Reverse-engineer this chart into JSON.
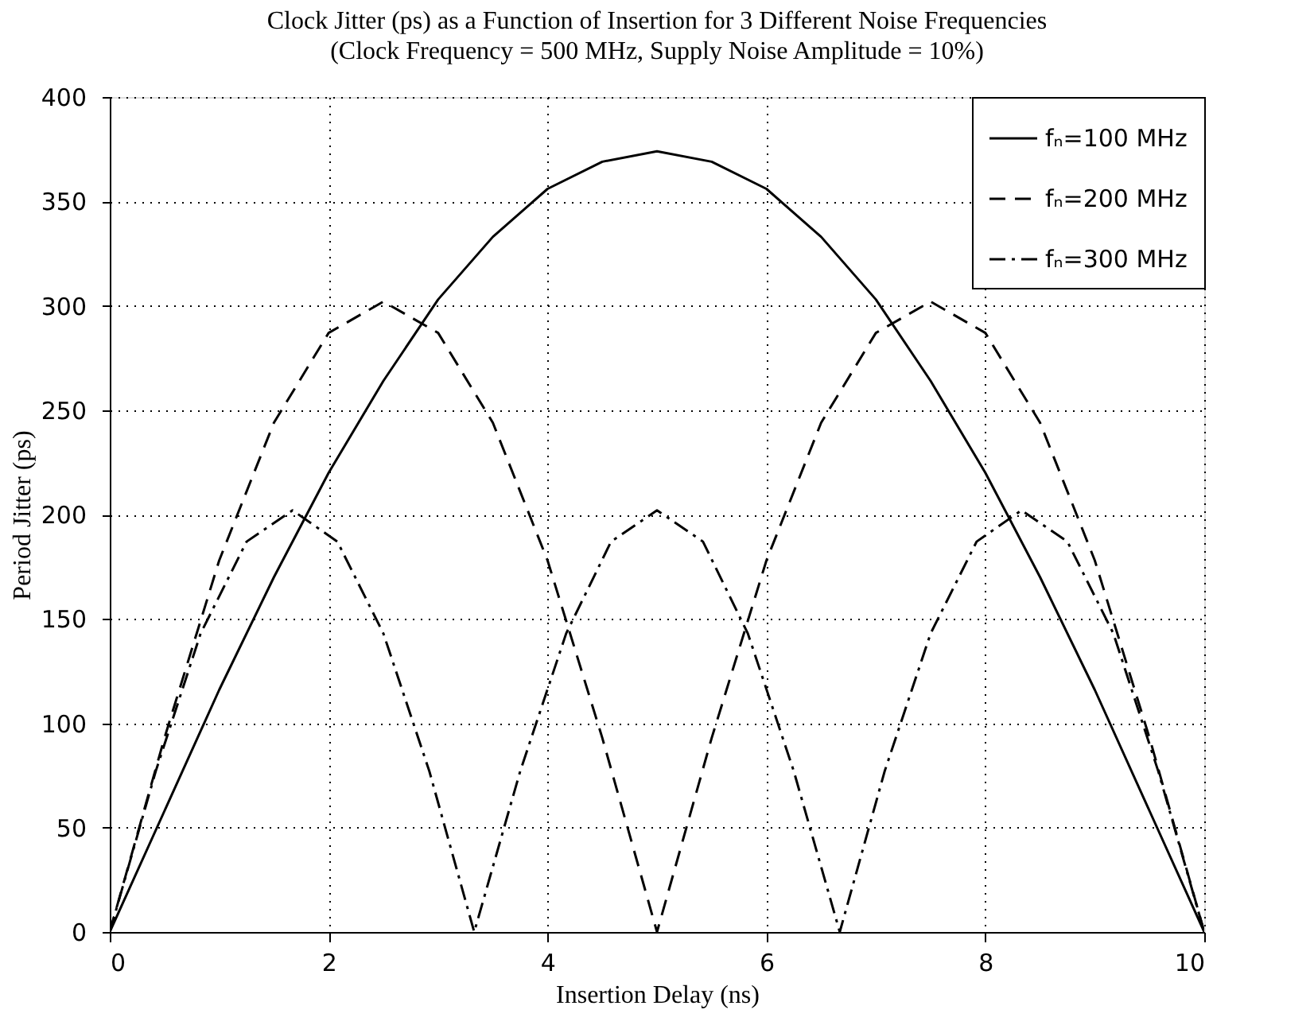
{
  "chart_data": {
    "type": "line",
    "title": "Clock Jitter (ps) as a Function of Insertion for 3 Different Noise Frequencies",
    "subtitle": "(Clock Frequency = 500 MHz, Supply Noise Amplitude = 10%)",
    "xlabel": "Insertion Delay (ns)",
    "ylabel": "Period Jitter (ps)",
    "xlim": [
      0,
      10
    ],
    "xticks": [
      0,
      2,
      4,
      6,
      8,
      10
    ],
    "ylim": [
      0,
      400
    ],
    "yticks": [
      0,
      50,
      100,
      150,
      200,
      250,
      300,
      350,
      400
    ],
    "grid": true,
    "legend": "top right",
    "marker": "none",
    "series": [
      {
        "name": "fₙ=100 MHz",
        "color": "#000000",
        "line_style": "solid",
        "x": [
          0,
          0.5,
          1,
          1.5,
          2,
          2.5,
          3,
          3.5,
          4,
          4.5,
          5,
          5.5,
          6,
          6.5,
          7,
          7.5,
          8,
          8.5,
          9,
          9.5,
          10
        ],
        "values": [
          0,
          58,
          116,
          170,
          220,
          264,
          303,
          333,
          356,
          369,
          374,
          369,
          356,
          333,
          303,
          264,
          220,
          170,
          116,
          58,
          0
        ]
      },
      {
        "name": "fₙ=200 MHz",
        "color": "#000000",
        "line_style": "dashed",
        "x": [
          0,
          0.5,
          1,
          1.5,
          2,
          2.5,
          3,
          3.5,
          4,
          4.5,
          5,
          5.5,
          6,
          6.5,
          7,
          7.5,
          8,
          8.5,
          9,
          9.5,
          10
        ],
        "values": [
          0,
          93,
          178,
          244,
          287,
          302,
          287,
          244,
          178,
          93,
          0,
          93,
          178,
          244,
          287,
          302,
          287,
          244,
          178,
          93,
          0
        ]
      },
      {
        "name": "fₙ=300 MHz",
        "color": "#000000",
        "line_style": "dashdot",
        "x": [
          0,
          0.42,
          0.83,
          1.25,
          1.67,
          2.08,
          2.5,
          2.92,
          3.33,
          3.75,
          4.17,
          4.58,
          5,
          5.42,
          5.83,
          6.25,
          6.67,
          7.08,
          7.5,
          7.92,
          8.33,
          8.75,
          9.17,
          9.58,
          10
        ],
        "values": [
          0,
          77,
          143,
          187,
          202,
          187,
          143,
          77,
          0,
          77,
          143,
          187,
          202,
          187,
          143,
          77,
          0,
          77,
          143,
          187,
          202,
          187,
          143,
          77,
          0
        ]
      }
    ]
  }
}
